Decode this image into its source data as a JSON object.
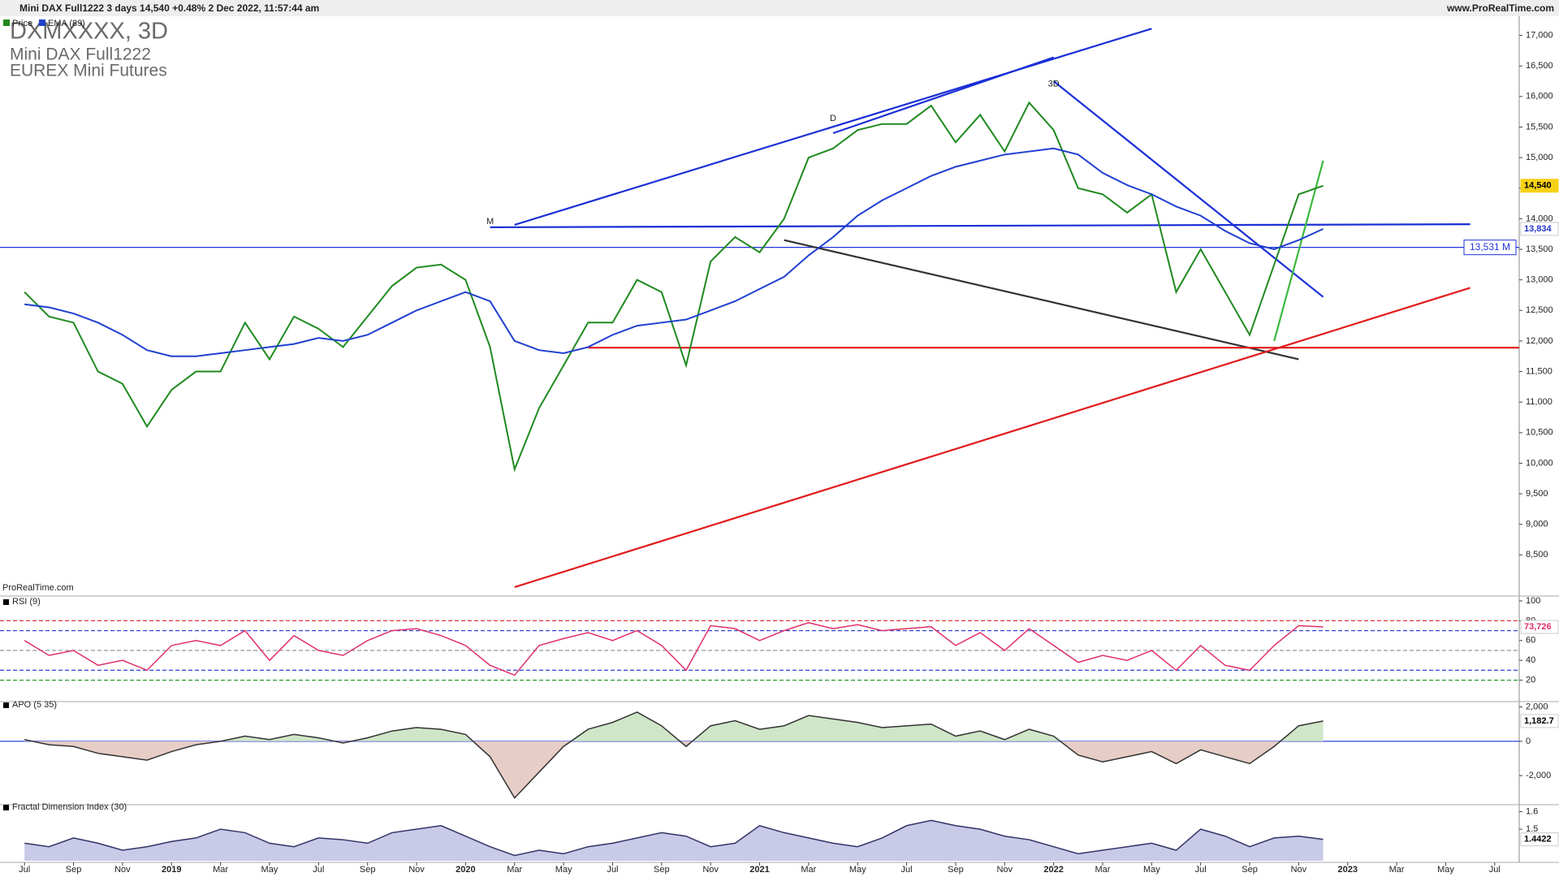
{
  "header": {
    "title": "Mini DAX Full1222 3 days 14,540 +0.48% 2 Dec 2022, 11:57:44 am",
    "site": "www.ProRealTime.com",
    "instrument": "DXMXXXX, 3D",
    "name": "Mini DAX Full1222",
    "exchange": "EUREX Mini Futures",
    "watermark": "ProRealTime.com"
  },
  "chart_data": [
    {
      "type": "line",
      "x": [
        "2018-07",
        "2018-08",
        "2018-09",
        "2018-10",
        "2018-11",
        "2018-12",
        "2019-01",
        "2019-02",
        "2019-03",
        "2019-04",
        "2019-05",
        "2019-06",
        "2019-07",
        "2019-08",
        "2019-09",
        "2019-10",
        "2019-11",
        "2019-12",
        "2020-01",
        "2020-02",
        "2020-03",
        "2020-04",
        "2020-05",
        "2020-06",
        "2020-07",
        "2020-08",
        "2020-09",
        "2020-10",
        "2020-11",
        "2020-12",
        "2021-01",
        "2021-02",
        "2021-03",
        "2021-04",
        "2021-05",
        "2021-06",
        "2021-07",
        "2021-08",
        "2021-09",
        "2021-10",
        "2021-11",
        "2021-12",
        "2022-01",
        "2022-02",
        "2022-03",
        "2022-04",
        "2022-05",
        "2022-06",
        "2022-07",
        "2022-08",
        "2022-09",
        "2022-10",
        "2022-11",
        "2022-12"
      ],
      "xlim": [
        "2018-06",
        "2023-08"
      ],
      "xticks": [
        {
          "value": "2018-07",
          "label": "Jul"
        },
        {
          "value": "2018-09",
          "label": "Sep"
        },
        {
          "value": "2018-11",
          "label": "Nov"
        },
        {
          "value": "2019-01",
          "label": "2019"
        },
        {
          "value": "2019-03",
          "label": "Mar"
        },
        {
          "value": "2019-05",
          "label": "May"
        },
        {
          "value": "2019-07",
          "label": "Jul"
        },
        {
          "value": "2019-09",
          "label": "Sep"
        },
        {
          "value": "2019-11",
          "label": "Nov"
        },
        {
          "value": "2020-01",
          "label": "2020"
        },
        {
          "value": "2020-03",
          "label": "Mar"
        },
        {
          "value": "2020-05",
          "label": "May"
        },
        {
          "value": "2020-07",
          "label": "Jul"
        },
        {
          "value": "2020-09",
          "label": "Sep"
        },
        {
          "value": "2020-11",
          "label": "Nov"
        },
        {
          "value": "2021-01",
          "label": "2021"
        },
        {
          "value": "2021-03",
          "label": "Mar"
        },
        {
          "value": "2021-05",
          "label": "May"
        },
        {
          "value": "2021-07",
          "label": "Jul"
        },
        {
          "value": "2021-09",
          "label": "Sep"
        },
        {
          "value": "2021-11",
          "label": "Nov"
        },
        {
          "value": "2022-01",
          "label": "2022"
        },
        {
          "value": "2022-03",
          "label": "Mar"
        },
        {
          "value": "2022-05",
          "label": "May"
        },
        {
          "value": "2022-07",
          "label": "Jul"
        },
        {
          "value": "2022-09",
          "label": "Sep"
        },
        {
          "value": "2022-11",
          "label": "Nov"
        },
        {
          "value": "2023-01",
          "label": "2023"
        },
        {
          "value": "2023-03",
          "label": "Mar"
        },
        {
          "value": "2023-05",
          "label": "May"
        },
        {
          "value": "2023-07",
          "label": "Jul"
        }
      ],
      "series": [
        {
          "name": "Price",
          "color": "#1f8a1f",
          "values": [
            12800,
            12400,
            12300,
            11500,
            11300,
            10600,
            11200,
            11500,
            11500,
            12300,
            11700,
            12400,
            12200,
            11900,
            12400,
            12900,
            13200,
            13250,
            13000,
            11900,
            9900,
            10900,
            11600,
            12300,
            12300,
            13000,
            12800,
            11600,
            13300,
            13700,
            13450,
            14000,
            15000,
            15150,
            15450,
            15550,
            15550,
            15850,
            15250,
            15700,
            15100,
            15900,
            15450,
            14500,
            14400,
            14100,
            14400,
            12800,
            13500,
            12800,
            12100,
            13250,
            14400,
            14540
          ]
        },
        {
          "name": "EMA (89)",
          "color": "#2040d0",
          "values": [
            12600,
            12550,
            12450,
            12300,
            12100,
            11850,
            11750,
            11750,
            11800,
            11850,
            11900,
            11950,
            12050,
            12000,
            12100,
            12300,
            12500,
            12650,
            12800,
            12650,
            12000,
            11850,
            11800,
            11900,
            12100,
            12250,
            12300,
            12350,
            12500,
            12650,
            12850,
            13050,
            13400,
            13700,
            14050,
            14300,
            14500,
            14700,
            14850,
            14950,
            15050,
            15100,
            15150,
            15050,
            14750,
            14550,
            14400,
            14200,
            14050,
            13800,
            13600,
            13500,
            13650,
            13834
          ]
        }
      ],
      "ylim": [
        7880,
        17180
      ],
      "yticks": [
        {
          "value": 8500,
          "label": "8,500"
        },
        {
          "value": 9000,
          "label": "9,000"
        },
        {
          "value": 9500,
          "label": "9,500"
        },
        {
          "value": 10000,
          "label": "10,000"
        },
        {
          "value": 10500,
          "label": "10,500"
        },
        {
          "value": 11000,
          "label": "11,000"
        },
        {
          "value": 11500,
          "label": "11,500"
        },
        {
          "value": 12000,
          "label": "12,000"
        },
        {
          "value": 12500,
          "label": "12,500"
        },
        {
          "value": 13000,
          "label": "13,000"
        },
        {
          "value": 13500,
          "label": "13,500"
        },
        {
          "value": 14000,
          "label": "14,000"
        },
        {
          "value": 14500,
          "label": "14,500"
        },
        {
          "value": 15000,
          "label": "15,000"
        },
        {
          "value": 15500,
          "label": "15,500"
        },
        {
          "value": 16000,
          "label": "16,000"
        },
        {
          "value": 16500,
          "label": "16,500"
        },
        {
          "value": 17000,
          "label": "17,000"
        }
      ],
      "levels": [
        {
          "value": 13531,
          "label": "13,531 M",
          "color": "#2233dd",
          "dashed": false
        }
      ],
      "trendlines": [
        {
          "x": [
            "2020-03",
            "2022-05"
          ],
          "y": [
            13900,
            17110
          ],
          "color": "#1a2fd6"
        },
        {
          "x": [
            "2021-04",
            "2022-01"
          ],
          "y": [
            15400,
            16640
          ],
          "color": "#1a2fd6"
        },
        {
          "x": [
            "2020-02",
            "2023-06"
          ],
          "y": [
            13860,
            13910
          ],
          "color": "#1a2fd6"
        },
        {
          "x": [
            "2022-01",
            "2022-12"
          ],
          "y": [
            16250,
            12720
          ],
          "color": "#1a2fd6"
        },
        {
          "x": [
            "2021-02",
            "2022-11"
          ],
          "y": [
            13650,
            11700
          ],
          "color": "#333333"
        },
        {
          "x": [
            "2020-03",
            "2023-06"
          ],
          "y": [
            7973,
            12870
          ],
          "color": "#e01a1a"
        },
        {
          "x": [
            "2020-06",
            "2023-08"
          ],
          "y": [
            11890,
            11890
          ],
          "color": "#e01a1a"
        },
        {
          "x": [
            "2022-10",
            "2022-12"
          ],
          "y": [
            12000,
            14950
          ],
          "color": "#3cb83c"
        }
      ],
      "annotations": [
        {
          "text": "M",
          "x": "2020-02",
          "y": 13950
        },
        {
          "text": "D",
          "x": "2021-04",
          "y": 15640
        },
        {
          "text": "3D",
          "x": "2022-01",
          "y": 16200
        }
      ],
      "markers": [
        {
          "value": 14540,
          "label": "14,540",
          "background": "#f7d117",
          "color": "#000000"
        },
        {
          "value": 13834,
          "label": "13,834",
          "background": "#ffffff",
          "color": "#2233cc"
        }
      ]
    },
    {
      "type": "line",
      "series": [
        {
          "name": "RSI (9)",
          "color": "#e0306a",
          "values": [
            60,
            45,
            50,
            35,
            40,
            30,
            55,
            60,
            55,
            70,
            40,
            65,
            50,
            45,
            60,
            70,
            72,
            65,
            55,
            35,
            25,
            55,
            62,
            68,
            60,
            70,
            55,
            30,
            75,
            72,
            60,
            70,
            78,
            72,
            76,
            70,
            72,
            74,
            55,
            68,
            50,
            72,
            55,
            38,
            45,
            40,
            50,
            30,
            55,
            35,
            30,
            55,
            75,
            73.726
          ]
        }
      ],
      "ylim": [
        0,
        100
      ],
      "yticks": [
        20,
        40,
        60,
        80,
        100
      ],
      "levels": [
        {
          "value": 80,
          "color": "#e03030",
          "dashed": true
        },
        {
          "value": 70,
          "color": "#3344cc",
          "dashed": true
        },
        {
          "value": 50,
          "color": "#999999",
          "dashed": true
        },
        {
          "value": 30,
          "color": "#3344cc",
          "dashed": true
        },
        {
          "value": 20,
          "color": "#2a9a2a",
          "dashed": true
        }
      ],
      "markers": [
        {
          "value": 73.726,
          "label": "73,726",
          "background": "#ffffff",
          "color": "#e0306a"
        }
      ]
    },
    {
      "type": "area",
      "series": [
        {
          "name": "APO (5 35)",
          "color": "#333333",
          "fill": "#cfe6c8",
          "fill_negative": "#e6cdc6",
          "values": [
            100,
            -200,
            -300,
            -700,
            -900,
            -1100,
            -600,
            -200,
            0,
            300,
            100,
            400,
            200,
            -100,
            200,
            600,
            800,
            700,
            400,
            -900,
            -3300,
            -1800,
            -300,
            700,
            1100,
            1700,
            900,
            -300,
            900,
            1200,
            700,
            900,
            1500,
            1300,
            1100,
            800,
            900,
            1000,
            300,
            600,
            100,
            700,
            300,
            -800,
            -1200,
            -900,
            -600,
            -1300,
            -500,
            -900,
            -1300,
            -300,
            900,
            1182.7
          ]
        }
      ],
      "ylim": [
        -3600,
        2170
      ],
      "yticks": [
        {
          "value": 2000,
          "label": "2,000"
        },
        0,
        {
          "value": -2000,
          "label": "-2,000"
        }
      ],
      "levels": [
        {
          "value": 0,
          "color": "#3344dd",
          "dashed": false
        }
      ],
      "markers": [
        {
          "value": 1182.7,
          "label": "1,182.7",
          "background": "#ffffff",
          "color": "#000000"
        }
      ]
    },
    {
      "type": "area",
      "series": [
        {
          "name": "Fractal Dimension Index (30)",
          "color": "#333366",
          "fill": "#c9c9e8",
          "values": [
            1.42,
            1.4,
            1.45,
            1.42,
            1.38,
            1.4,
            1.43,
            1.45,
            1.5,
            1.48,
            1.42,
            1.4,
            1.45,
            1.44,
            1.42,
            1.48,
            1.5,
            1.52,
            1.46,
            1.4,
            1.35,
            1.38,
            1.36,
            1.4,
            1.42,
            1.45,
            1.48,
            1.46,
            1.4,
            1.42,
            1.52,
            1.48,
            1.45,
            1.42,
            1.4,
            1.45,
            1.52,
            1.55,
            1.52,
            1.5,
            1.46,
            1.44,
            1.4,
            1.36,
            1.38,
            1.4,
            1.42,
            1.38,
            1.5,
            1.46,
            1.4,
            1.45,
            1.46,
            1.4422
          ]
        }
      ],
      "ylim": [
        1.32,
        1.63
      ],
      "yticks": [
        1.5,
        1.6
      ],
      "markers": [
        {
          "value": 1.4422,
          "background": "#ffffff",
          "color": "#000000"
        }
      ]
    }
  ]
}
